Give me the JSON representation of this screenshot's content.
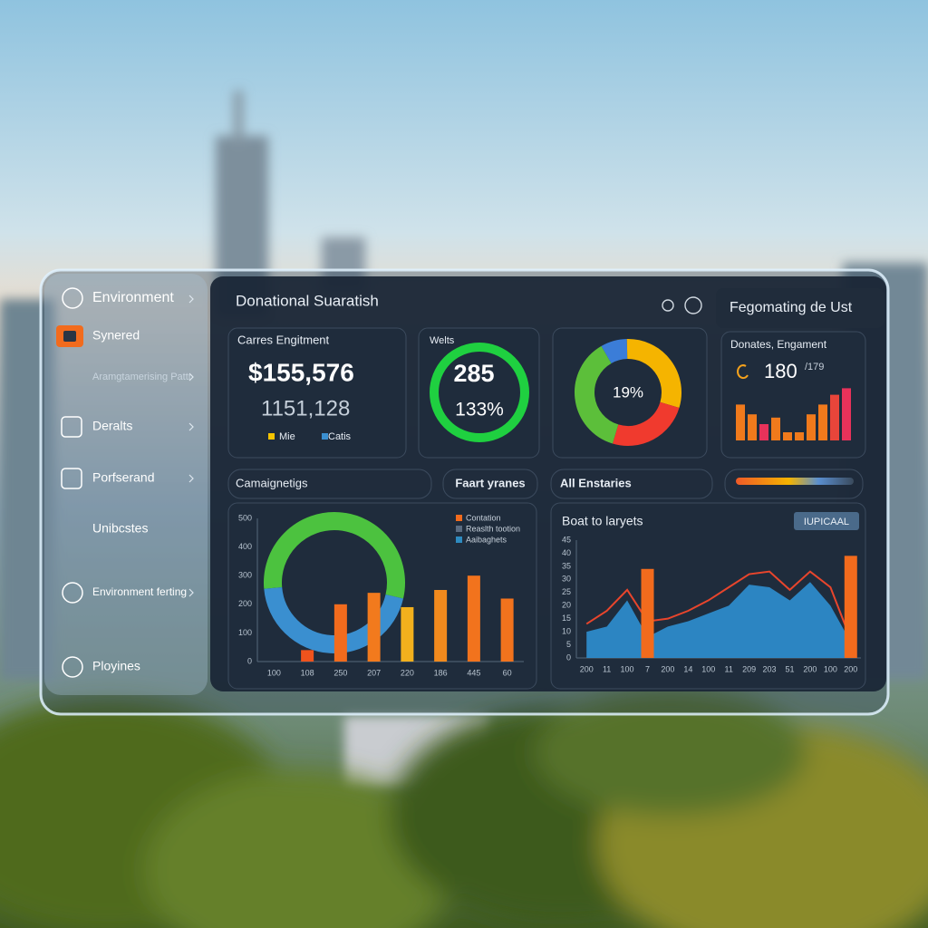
{
  "sidebar": [
    "Environment",
    "Synered",
    "Aramgtamerising Pattr",
    "Deralts",
    "Porfserand",
    "Unibcstes",
    "Environment ferting",
    "Ployines"
  ],
  "header": {
    "title": "Donational Suaratish",
    "panel_title": "Fegomating de Ust"
  },
  "summary": {
    "title": "Carres Engitment",
    "amount": "$155,576",
    "count": "1151,128",
    "legend": [
      "Mie",
      "Catis"
    ]
  },
  "ring": {
    "title": "Welts",
    "value": "285",
    "percent": "133%"
  },
  "tabs": [
    "Camaignetigs",
    "Faart yranes",
    "All Enstaries"
  ],
  "chart_data": [
    {
      "type": "pie",
      "center_label": "19%",
      "values": [
        8,
        30,
        25,
        37
      ],
      "colors": [
        "#3b7dd8",
        "#f5b400",
        "#f03a2e",
        "#5cbf3a"
      ]
    },
    {
      "type": "bar",
      "title": "Donates, Engament",
      "value_label": "180",
      "sub_label": "/179",
      "values": [
        22,
        16,
        10,
        14,
        5,
        5,
        16,
        22,
        28,
        32
      ],
      "colors": [
        "#f07a1c",
        "#f07a1c",
        "#e8325a",
        "#f07a1c",
        "#f07a1c",
        "#f07a1c",
        "#f07a1c",
        "#f07a1c",
        "#e8453a",
        "#e8325a"
      ]
    },
    {
      "type": "bar",
      "categories": [
        "100",
        "108",
        "250",
        "207",
        "220",
        "186",
        "445",
        "60"
      ],
      "values": [
        null,
        40,
        200,
        240,
        190,
        250,
        300,
        220
      ],
      "colors": [
        "#f26b1d",
        "#f0531d",
        "#f26b1d",
        "#f27a1d",
        "#f2b01d",
        "#f28a1d",
        "#f2731d",
        "#f2731d"
      ],
      "ylim": [
        0,
        500
      ],
      "yticks": [
        0,
        100,
        200,
        300,
        400,
        500
      ],
      "grid": false,
      "ring": [
        55,
        45
      ],
      "ring_colors": [
        "#4cc23f",
        "#3a8fd0"
      ],
      "legend": [
        {
          "label": "Contation",
          "color": "#f26b1d"
        },
        {
          "label": "Reaslth tootion",
          "color": "#5a6b80"
        },
        {
          "label": "Aaibaghets",
          "color": "#2e8bc0"
        }
      ]
    },
    {
      "type": "combo",
      "title": "Boat to laryets",
      "button": "IUPICAAL",
      "categories": [
        "200",
        "11",
        "100",
        "7",
        "200",
        "14",
        "100",
        "11",
        "209",
        "203",
        "51",
        "200",
        "100",
        "200"
      ],
      "ylim": [
        0,
        45
      ],
      "yticks": [
        0,
        5,
        10,
        15,
        20,
        25,
        30,
        35,
        40,
        45
      ],
      "grid": false,
      "series": [
        {
          "kind": "area",
          "color": "#2e8fd0",
          "values": [
            10,
            12,
            22,
            8,
            12,
            14,
            17,
            20,
            28,
            27,
            22,
            29,
            20,
            6
          ]
        },
        {
          "kind": "line",
          "color": "#e8452c",
          "values": [
            13,
            18,
            26,
            14,
            15,
            18,
            22,
            27,
            32,
            33,
            26,
            33,
            27,
            7
          ]
        },
        {
          "kind": "bar",
          "color": "#f26b1d",
          "values": [
            null,
            null,
            null,
            34,
            null,
            null,
            null,
            null,
            null,
            null,
            null,
            null,
            null,
            39
          ]
        }
      ]
    }
  ]
}
